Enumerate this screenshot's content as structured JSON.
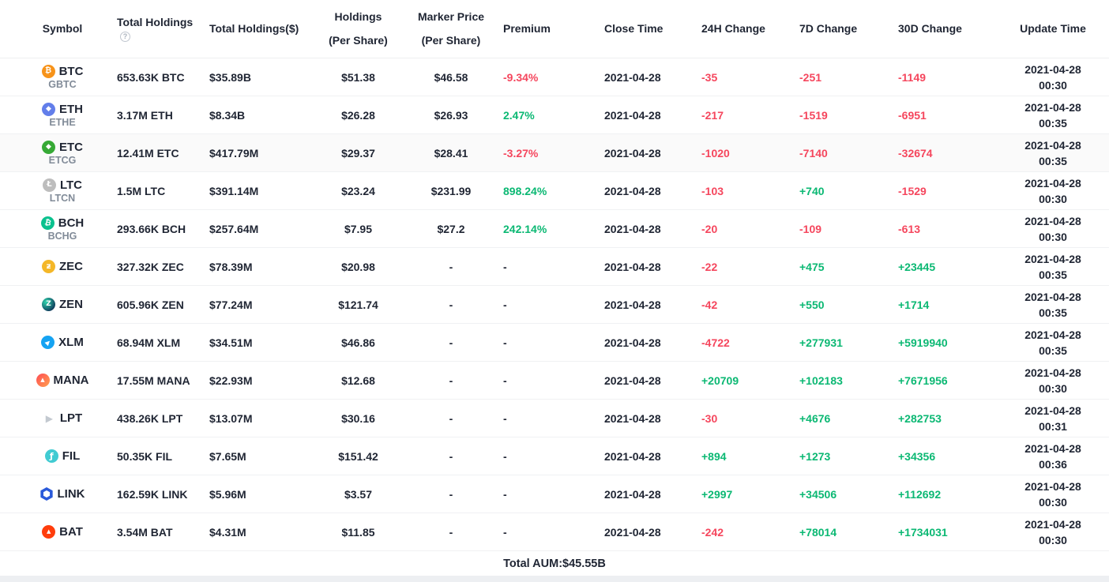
{
  "colors": {
    "up": "#0bb873",
    "down": "#f5465d",
    "text": "#1f2533",
    "muted": "#818b98"
  },
  "table": {
    "columns": [
      {
        "label": "Symbol"
      },
      {
        "label": "Total Holdings",
        "tooltip_icon": "question-mark"
      },
      {
        "label": "Total Holdings($)"
      },
      {
        "label": "Holdings",
        "label2": "(Per Share)"
      },
      {
        "label": "Marker Price",
        "label2": "(Per Share)"
      },
      {
        "label": "Premium"
      },
      {
        "label": "Close Time"
      },
      {
        "label": "24H Change"
      },
      {
        "label": "7D Change"
      },
      {
        "label": "30D Change"
      },
      {
        "label": "Update Time"
      }
    ],
    "rows": [
      {
        "id": "btc",
        "symbol": "BTC",
        "trust": "GBTC",
        "icon_glyph": "₿",
        "total_holdings": "653.63K BTC",
        "total_holdings_usd": "$35.89B",
        "holdings_per_share": "$51.38",
        "market_price": "$46.58",
        "premium": "-9.34%",
        "premium_dir": "down",
        "close_time": "2021-04-28",
        "change_24h": "-35",
        "change_7d": "-251",
        "change_30d": "-1149",
        "update_date": "2021-04-28",
        "update_clock": "00:30",
        "highlighted": false
      },
      {
        "id": "eth",
        "symbol": "ETH",
        "trust": "ETHE",
        "icon_glyph": "◆",
        "total_holdings": "3.17M ETH",
        "total_holdings_usd": "$8.34B",
        "holdings_per_share": "$26.28",
        "market_price": "$26.93",
        "premium": "2.47%",
        "premium_dir": "up",
        "close_time": "2021-04-28",
        "change_24h": "-217",
        "change_7d": "-1519",
        "change_30d": "-6951",
        "update_date": "2021-04-28",
        "update_clock": "00:35",
        "highlighted": false
      },
      {
        "id": "etc",
        "symbol": "ETC",
        "trust": "ETCG",
        "icon_glyph": "◆",
        "total_holdings": "12.41M ETC",
        "total_holdings_usd": "$417.79M",
        "holdings_per_share": "$29.37",
        "market_price": "$28.41",
        "premium": "-3.27%",
        "premium_dir": "down",
        "close_time": "2021-04-28",
        "change_24h": "-1020",
        "change_7d": "-7140",
        "change_30d": "-32674",
        "update_date": "2021-04-28",
        "update_clock": "00:35",
        "highlighted": true
      },
      {
        "id": "ltc",
        "symbol": "LTC",
        "trust": "LTCN",
        "icon_glyph": "Ł",
        "total_holdings": "1.5M LTC",
        "total_holdings_usd": "$391.14M",
        "holdings_per_share": "$23.24",
        "market_price": "$231.99",
        "premium": "898.24%",
        "premium_dir": "up",
        "close_time": "2021-04-28",
        "change_24h": "-103",
        "change_7d": "+740",
        "change_30d": "-1529",
        "update_date": "2021-04-28",
        "update_clock": "00:30",
        "highlighted": false
      },
      {
        "id": "bch",
        "symbol": "BCH",
        "trust": "BCHG",
        "icon_glyph": "₿",
        "total_holdings": "293.66K BCH",
        "total_holdings_usd": "$257.64M",
        "holdings_per_share": "$7.95",
        "market_price": "$27.2",
        "premium": "242.14%",
        "premium_dir": "up",
        "close_time": "2021-04-28",
        "change_24h": "-20",
        "change_7d": "-109",
        "change_30d": "-613",
        "update_date": "2021-04-28",
        "update_clock": "00:30",
        "highlighted": false
      },
      {
        "id": "zec",
        "symbol": "ZEC",
        "trust": "",
        "icon_glyph": "ƶ",
        "total_holdings": "327.32K ZEC",
        "total_holdings_usd": "$78.39M",
        "holdings_per_share": "$20.98",
        "market_price": "-",
        "premium": "-",
        "premium_dir": "",
        "close_time": "2021-04-28",
        "change_24h": "-22",
        "change_7d": "+475",
        "change_30d": "+23445",
        "update_date": "2021-04-28",
        "update_clock": "00:35",
        "highlighted": false
      },
      {
        "id": "zen",
        "symbol": "ZEN",
        "trust": "",
        "icon_glyph": "Z",
        "total_holdings": "605.96K ZEN",
        "total_holdings_usd": "$77.24M",
        "holdings_per_share": "$121.74",
        "market_price": "-",
        "premium": "-",
        "premium_dir": "",
        "close_time": "2021-04-28",
        "change_24h": "-42",
        "change_7d": "+550",
        "change_30d": "+1714",
        "update_date": "2021-04-28",
        "update_clock": "00:35",
        "highlighted": false
      },
      {
        "id": "xlm",
        "symbol": "XLM",
        "trust": "",
        "icon_glyph": "▶",
        "total_holdings": "68.94M XLM",
        "total_holdings_usd": "$34.51M",
        "holdings_per_share": "$46.86",
        "market_price": "-",
        "premium": "-",
        "premium_dir": "",
        "close_time": "2021-04-28",
        "change_24h": "-4722",
        "change_7d": "+277931",
        "change_30d": "+5919940",
        "update_date": "2021-04-28",
        "update_clock": "00:35",
        "highlighted": false
      },
      {
        "id": "mana",
        "symbol": "MANA",
        "trust": "",
        "icon_glyph": "▲",
        "total_holdings": "17.55M MANA",
        "total_holdings_usd": "$22.93M",
        "holdings_per_share": "$12.68",
        "market_price": "-",
        "premium": "-",
        "premium_dir": "",
        "close_time": "2021-04-28",
        "change_24h": "+20709",
        "change_7d": "+102183",
        "change_30d": "+7671956",
        "update_date": "2021-04-28",
        "update_clock": "00:30",
        "highlighted": false
      },
      {
        "id": "lpt",
        "symbol": "LPT",
        "trust": "",
        "icon_glyph": "▶",
        "total_holdings": "438.26K LPT",
        "total_holdings_usd": "$13.07M",
        "holdings_per_share": "$30.16",
        "market_price": "-",
        "premium": "-",
        "premium_dir": "",
        "close_time": "2021-04-28",
        "change_24h": "-30",
        "change_7d": "+4676",
        "change_30d": "+282753",
        "update_date": "2021-04-28",
        "update_clock": "00:31",
        "highlighted": false
      },
      {
        "id": "fil",
        "symbol": "FIL",
        "trust": "",
        "icon_glyph": "ƒ",
        "total_holdings": "50.35K FIL",
        "total_holdings_usd": "$7.65M",
        "holdings_per_share": "$151.42",
        "market_price": "-",
        "premium": "-",
        "premium_dir": "",
        "close_time": "2021-04-28",
        "change_24h": "+894",
        "change_7d": "+1273",
        "change_30d": "+34356",
        "update_date": "2021-04-28",
        "update_clock": "00:36",
        "highlighted": false
      },
      {
        "id": "link",
        "symbol": "LINK",
        "trust": "",
        "icon_glyph": "",
        "total_holdings": "162.59K LINK",
        "total_holdings_usd": "$5.96M",
        "holdings_per_share": "$3.57",
        "market_price": "-",
        "premium": "-",
        "premium_dir": "",
        "close_time": "2021-04-28",
        "change_24h": "+2997",
        "change_7d": "+34506",
        "change_30d": "+112692",
        "update_date": "2021-04-28",
        "update_clock": "00:30",
        "highlighted": false
      },
      {
        "id": "bat",
        "symbol": "BAT",
        "trust": "",
        "icon_glyph": "▲",
        "total_holdings": "3.54M BAT",
        "total_holdings_usd": "$4.31M",
        "holdings_per_share": "$11.85",
        "market_price": "-",
        "premium": "-",
        "premium_dir": "",
        "close_time": "2021-04-28",
        "change_24h": "-242",
        "change_7d": "+78014",
        "change_30d": "+1734031",
        "update_date": "2021-04-28",
        "update_clock": "00:30",
        "highlighted": false
      }
    ],
    "footer": {
      "total_aum": "Total AUM:$45.55B"
    },
    "tooltip_glyph": "?"
  }
}
